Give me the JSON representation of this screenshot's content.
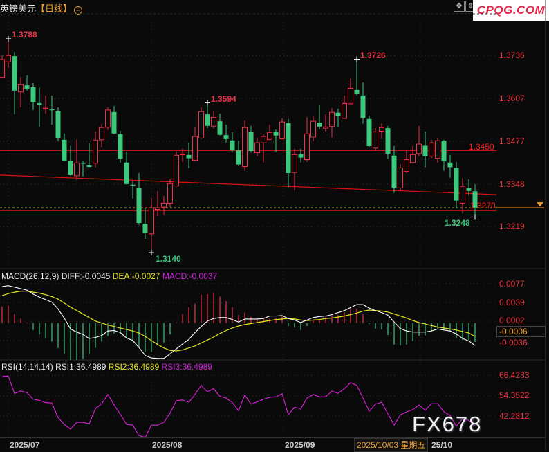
{
  "header": {
    "symbol": "英镑美元",
    "period": "【日线】",
    "zoom_icon": "zoom-out-icon",
    "tools": [
      "crosshair-icon",
      "fit-height-icon",
      "fit-width-icon"
    ]
  },
  "logo": "CPQG.COM",
  "watermark": "FX678",
  "colors": {
    "up": "#f0304a",
    "down": "#3cc97e",
    "axis_text": "#e8343e",
    "diff": "#ffffff",
    "dea": "#e6e620",
    "rsi": "#e020e0",
    "current_price": "#f0a030"
  },
  "price_axis": {
    "ticks": [
      "1.3736",
      "1.3607",
      "1.3477",
      "1.3348",
      "1.3219"
    ]
  },
  "annotations": {
    "high_1": "1.3788",
    "low_1": "1.3140",
    "high_2": "1.3594",
    "high_3": "1.3726",
    "resistance": "1.3450",
    "support": "1.3270",
    "low_recent": "1.3248"
  },
  "lines": {
    "resistance": 1.345,
    "support": 1.327,
    "current_price": 1.3276,
    "trendline": [
      1.3375,
      1.3316
    ]
  },
  "candles": [
    [
      1.3671,
      1.3737,
      1.3671,
      1.3725
    ],
    [
      1.3718,
      1.3788,
      1.37,
      1.3737
    ],
    [
      1.3735,
      1.3748,
      1.3559,
      1.3631
    ],
    [
      1.3627,
      1.3672,
      1.358,
      1.3649
    ],
    [
      1.3647,
      1.3677,
      1.3631,
      1.3637
    ],
    [
      1.3641,
      1.3654,
      1.3572,
      1.3596
    ],
    [
      1.3593,
      1.3641,
      1.3522,
      1.3587
    ],
    [
      1.3576,
      1.3616,
      1.3561,
      1.3578
    ],
    [
      1.3574,
      1.3616,
      1.3528,
      1.3573
    ],
    [
      1.3568,
      1.358,
      1.3478,
      1.3486
    ],
    [
      1.3482,
      1.3501,
      1.3417,
      1.3419
    ],
    [
      1.3419,
      1.3463,
      1.3373,
      1.3375
    ],
    [
      1.3373,
      1.3482,
      1.336,
      1.3412
    ],
    [
      1.3412,
      1.3419,
      1.3371,
      1.3411
    ],
    [
      1.3404,
      1.3471,
      1.3399,
      1.34
    ],
    [
      1.3411,
      1.3507,
      1.3399,
      1.3481
    ],
    [
      1.3482,
      1.353,
      1.3459,
      1.3519
    ],
    [
      1.352,
      1.358,
      1.3512,
      1.3572
    ],
    [
      1.3566,
      1.3584,
      1.3499,
      1.3501
    ],
    [
      1.3499,
      1.3509,
      1.3413,
      1.3425
    ],
    [
      1.3413,
      1.3446,
      1.3346,
      1.3348
    ],
    [
      1.3346,
      1.3358,
      1.3304,
      1.3345
    ],
    [
      1.3335,
      1.3381,
      1.3224,
      1.323
    ],
    [
      1.3228,
      1.3276,
      1.3182,
      1.3199
    ],
    [
      1.3197,
      1.3306,
      1.314,
      1.3276
    ],
    [
      1.3271,
      1.3327,
      1.3251,
      1.3276
    ],
    [
      1.3278,
      1.3312,
      1.3255,
      1.329
    ],
    [
      1.329,
      1.3364,
      1.3278,
      1.3349
    ],
    [
      1.3342,
      1.3448,
      1.334,
      1.3435
    ],
    [
      1.3438,
      1.3455,
      1.3415,
      1.3439
    ],
    [
      1.3436,
      1.3473,
      1.3396,
      1.3426
    ],
    [
      1.342,
      1.3519,
      1.3418,
      1.3492
    ],
    [
      1.3487,
      1.358,
      1.3484,
      1.3567
    ],
    [
      1.3559,
      1.3594,
      1.3517,
      1.3524
    ],
    [
      1.3523,
      1.357,
      1.3516,
      1.355
    ],
    [
      1.3538,
      1.3561,
      1.3495,
      1.3497
    ],
    [
      1.3496,
      1.3528,
      1.3474,
      1.3484
    ],
    [
      1.348,
      1.3505,
      1.3445,
      1.3451
    ],
    [
      1.345,
      1.3479,
      1.3402,
      1.3407
    ],
    [
      1.3401,
      1.354,
      1.3388,
      1.3519
    ],
    [
      1.3505,
      1.3524,
      1.3443,
      1.3448
    ],
    [
      1.3443,
      1.3487,
      1.3432,
      1.3473
    ],
    [
      1.3473,
      1.3498,
      1.3413,
      1.3492
    ],
    [
      1.3483,
      1.3528,
      1.348,
      1.3504
    ],
    [
      1.3505,
      1.3513,
      1.3445,
      1.3495
    ],
    [
      1.3485,
      1.3547,
      1.3483,
      1.3536
    ],
    [
      1.3532,
      1.3545,
      1.3338,
      1.3381
    ],
    [
      1.3383,
      1.3455,
      1.3329,
      1.3437
    ],
    [
      1.3438,
      1.3455,
      1.3413,
      1.3428
    ],
    [
      1.3422,
      1.355,
      1.3415,
      1.35
    ],
    [
      1.349,
      1.3553,
      1.3478,
      1.3538
    ],
    [
      1.3534,
      1.3587,
      1.3514,
      1.3522
    ],
    [
      1.3517,
      1.3559,
      1.3507,
      1.3521
    ],
    [
      1.3522,
      1.3578,
      1.3489,
      1.3565
    ],
    [
      1.3564,
      1.3576,
      1.352,
      1.3554
    ],
    [
      1.3547,
      1.3616,
      1.3545,
      1.3592
    ],
    [
      1.3591,
      1.3668,
      1.3589,
      1.3638
    ],
    [
      1.3633,
      1.3726,
      1.3617,
      1.362
    ],
    [
      1.3616,
      1.3656,
      1.3531,
      1.3549
    ],
    [
      1.3545,
      1.3555,
      1.3459,
      1.3463
    ],
    [
      1.3457,
      1.3517,
      1.3451,
      1.3506
    ],
    [
      1.3508,
      1.3532,
      1.3484,
      1.3519
    ],
    [
      1.3517,
      1.3524,
      1.3424,
      1.344
    ],
    [
      1.3434,
      1.3463,
      1.3321,
      1.3337
    ],
    [
      1.3336,
      1.3408,
      1.3327,
      1.3397
    ],
    [
      1.3386,
      1.3452,
      1.3381,
      1.3422
    ],
    [
      1.3413,
      1.3463,
      1.3412,
      1.3437
    ],
    [
      1.344,
      1.3524,
      1.3432,
      1.3469
    ],
    [
      1.3464,
      1.3507,
      1.3399,
      1.3432
    ],
    [
      1.3432,
      1.3482,
      1.3426,
      1.3473
    ],
    [
      1.3426,
      1.3486,
      1.3413,
      1.3479
    ],
    [
      1.3479,
      1.3482,
      1.3388,
      1.3417
    ],
    [
      1.3413,
      1.3436,
      1.3367,
      1.3399
    ],
    [
      1.3397,
      1.3415,
      1.3277,
      1.3298
    ],
    [
      1.329,
      1.3366,
      1.3259,
      1.3341
    ],
    [
      1.3335,
      1.3362,
      1.3313,
      1.3327
    ],
    [
      1.3326,
      1.3347,
      1.3248,
      1.3276
    ]
  ],
  "macd": {
    "label": "MACD(26,12,9)",
    "diff_label": "DIFF:-0.0045",
    "dea_label": "DEA:-0.0027",
    "macd_label": "MACD:-0.0037",
    "ticks": [
      "0.0077",
      "0.0039",
      "0.0002",
      "-0.0036"
    ],
    "current": "-0.0006",
    "diff": [
      0.0073,
      0.0075,
      0.0072,
      0.0069,
      0.0066,
      0.0058,
      0.0052,
      0.0047,
      0.0042,
      0.0028,
      0.001,
      -0.0012,
      -0.0018,
      -0.0023,
      -0.0031,
      -0.0029,
      -0.0025,
      -0.0016,
      -0.0015,
      -0.0019,
      -0.003,
      -0.0035,
      -0.0049,
      -0.0065,
      -0.007,
      -0.0071,
      -0.0071,
      -0.0062,
      -0.0052,
      -0.0042,
      -0.0033,
      -0.0019,
      -0.0007,
      0.0004,
      0.0009,
      0.0011,
      0.0011,
      0.0007,
      0.0002,
      0.0008,
      0.0008,
      0.0008,
      0.0009,
      0.0014,
      0.0014,
      0.0015,
      0.0009,
      0.0006,
      0.0001,
      0.0006,
      0.0011,
      0.0013,
      0.0014,
      0.0017,
      0.0021,
      0.0025,
      0.0031,
      0.0037,
      0.0037,
      0.003,
      0.0025,
      0.0021,
      0.0016,
      0.0002,
      -0.0011,
      -0.0016,
      -0.0018,
      -0.0018,
      -0.0018,
      -0.0016,
      -0.0012,
      -0.0014,
      -0.0016,
      -0.0022,
      -0.0031,
      -0.0036,
      -0.0045
    ],
    "dea": [
      0.0055,
      0.0059,
      0.0062,
      0.0064,
      0.0064,
      0.0062,
      0.006,
      0.0057,
      0.0053,
      0.0048,
      0.004,
      0.0032,
      0.0025,
      0.0018,
      0.0011,
      0.0004,
      0.0,
      -0.0004,
      -0.0007,
      -0.001,
      -0.0013,
      -0.0016,
      -0.002,
      -0.0027,
      -0.0035,
      -0.0043,
      -0.005,
      -0.0055,
      -0.0056,
      -0.0054,
      -0.005,
      -0.0046,
      -0.004,
      -0.0034,
      -0.0028,
      -0.0021,
      -0.0015,
      -0.001,
      -0.0006,
      -0.0003,
      -0.0001,
      0.0001,
      0.0003,
      0.0005,
      0.0007,
      0.0008,
      0.0009,
      0.0008,
      0.0006,
      0.0005,
      0.0006,
      0.0007,
      0.0009,
      0.001,
      0.0012,
      0.0014,
      0.0017,
      0.002,
      0.0024,
      0.0026,
      0.0025,
      0.0024,
      0.0022,
      0.0018,
      0.0014,
      0.001,
      0.0005,
      0.0001,
      -0.0002,
      -0.0005,
      -0.0008,
      -0.001,
      -0.0012,
      -0.0014,
      -0.0017,
      -0.002,
      -0.0027
    ],
    "hist": [
      0.0033,
      0.0035,
      0.0018,
      0.0009,
      0.0001,
      -0.0014,
      -0.0023,
      -0.003,
      -0.0037,
      -0.005,
      -0.0062,
      -0.0074,
      -0.0074,
      -0.0072,
      -0.0062,
      -0.005,
      -0.0037,
      -0.0026,
      -0.0021,
      -0.0021,
      -0.0028,
      -0.0037,
      -0.0049,
      -0.0058,
      -0.0058,
      -0.0044,
      -0.0039,
      -0.0023,
      0.0001,
      0.0018,
      0.0032,
      0.0039,
      0.0057,
      0.0058,
      0.006,
      0.0053,
      0.0044,
      0.0032,
      0.0016,
      0.0021,
      0.0012,
      0.0009,
      0.0009,
      0.0009,
      0.001,
      0.0016,
      -0.0006,
      -0.0009,
      -0.0014,
      -0.0006,
      0.0005,
      0.0008,
      0.0011,
      0.0016,
      0.0016,
      0.0022,
      0.0029,
      0.0029,
      0.0018,
      -0.0002,
      -0.0011,
      -0.0013,
      -0.0024,
      -0.0043,
      -0.0045,
      -0.0043,
      -0.0036,
      -0.0026,
      -0.0025,
      -0.0015,
      -0.0012,
      -0.0013,
      -0.0016,
      -0.003,
      -0.0034,
      -0.0034,
      -0.0038
    ]
  },
  "rsi": {
    "label": "RSI(14,14,14)",
    "rsi1_label": "RSI1:36.4989",
    "rsi2_label": "RSI2:36.4989",
    "rsi3_label": "RSI3:36.4989",
    "ticks": [
      "66.4233",
      "54.3522",
      "42.2812"
    ],
    "values": [
      65.7,
      66.0,
      55.7,
      57.1,
      56.2,
      52.3,
      51.6,
      50.3,
      50.0,
      41.4,
      37.3,
      34.5,
      38.6,
      38.6,
      37.7,
      46.7,
      49.6,
      55.1,
      48.9,
      43.4,
      37.3,
      36.9,
      30.7,
      29.7,
      36.9,
      36.9,
      38.6,
      44.1,
      51.4,
      51.9,
      50.5,
      55.1,
      60.5,
      56.7,
      58.5,
      54.0,
      53.0,
      50.3,
      45.5,
      54.8,
      49.3,
      50.7,
      52.3,
      53.4,
      53.7,
      55.5,
      43.1,
      47.5,
      46.6,
      53.0,
      55.1,
      53.7,
      53.7,
      57.1,
      55.8,
      58.5,
      62.1,
      60.5,
      53.0,
      45.2,
      49.3,
      50.5,
      43.7,
      36.9,
      43.0,
      44.8,
      46.1,
      48.9,
      45.7,
      49.6,
      49.6,
      44.8,
      42.7,
      36.2,
      40.7,
      39.7,
      36.5
    ]
  },
  "dates": {
    "jul": "2025/07",
    "aug": "2025/08",
    "sep": "2025/09",
    "selected": "2025/10/03 星期五",
    "oct": "25/10"
  }
}
